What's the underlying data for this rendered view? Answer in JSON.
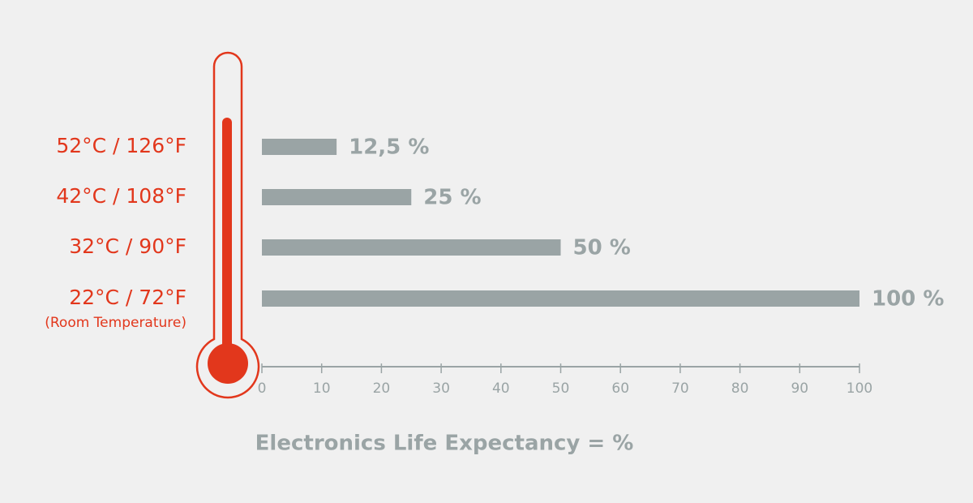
{
  "chart_data": {
    "type": "bar",
    "orientation": "horizontal",
    "categories": [
      "52°C / 126°F",
      "42°C / 108°F",
      "32°C / 90°F",
      "22°C / 72°F"
    ],
    "category_note": "(Room Temperature)",
    "values": [
      12.5,
      25,
      50,
      100
    ],
    "value_labels": [
      "12,5 %",
      "25 %",
      "50 %",
      "100 %"
    ],
    "color": "#9aa4a5",
    "label_color": "#e2371c",
    "xlim": [
      0,
      100
    ],
    "xticks": [
      0,
      10,
      20,
      30,
      40,
      50,
      60,
      70,
      80,
      90,
      100
    ],
    "x_label": "Electronics Life Expectancy = %"
  }
}
